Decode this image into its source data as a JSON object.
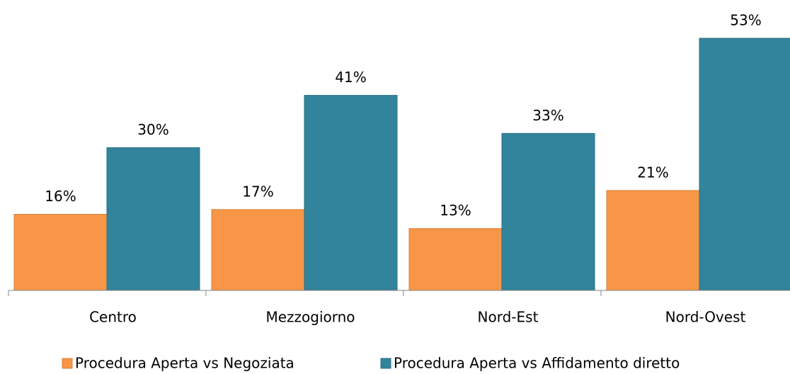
{
  "chart_data": {
    "type": "bar",
    "categories": [
      "Centro",
      "Mezzogiorno",
      "Nord-Est",
      "Nord-Ovest"
    ],
    "series": [
      {
        "name": "Procedura Aperta vs Negoziata",
        "color": "#F79646",
        "values": [
          16,
          17,
          13,
          21
        ],
        "value_labels": [
          "16%",
          "17%",
          "13%",
          "21%"
        ]
      },
      {
        "name": "Procedura Aperta vs Affidamento diretto",
        "color": "#31849B",
        "values": [
          30,
          41,
          33,
          53
        ],
        "value_labels": [
          "30%",
          "41%",
          "33%",
          "53%"
        ]
      }
    ],
    "legend": "bottom"
  }
}
